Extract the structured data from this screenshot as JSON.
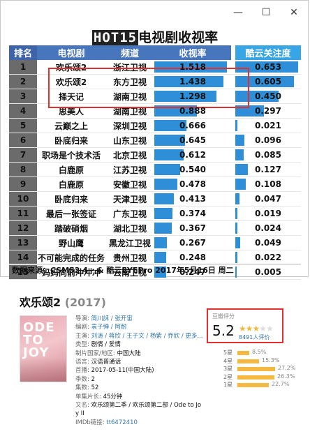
{
  "window": {
    "controls": {
      "minimize": "—",
      "maximize": "☐",
      "close": "✕"
    }
  },
  "chart": {
    "title_prefix": "HOT15",
    "title_main": "电视剧收视率",
    "headers": {
      "rank": "排名",
      "show": "电视剧",
      "channel": "频道",
      "rating": "收视率",
      "kuyun": "酷云关注度"
    },
    "rows": [
      {
        "rank": "1",
        "show": "欢乐颂2",
        "channel": "浙江卫视",
        "rating": "1.518",
        "rating_value": 1.518,
        "kuyun": "0.653",
        "kuyun_value": 0.653
      },
      {
        "rank": "2",
        "show": "欢乐颂2",
        "channel": "东方卫视",
        "rating": "1.438",
        "rating_value": 1.438,
        "kuyun": "0.605",
        "kuyun_value": 0.605
      },
      {
        "rank": "3",
        "show": "择天记",
        "channel": "湖南卫视",
        "rating": "1.298",
        "rating_value": 1.298,
        "kuyun": "0.450",
        "kuyun_value": 0.45
      },
      {
        "rank": "4",
        "show": "思美人",
        "channel": "湖南卫视",
        "rating": "0.888",
        "rating_value": 0.888,
        "kuyun": "0.297",
        "kuyun_value": 0.297
      },
      {
        "rank": "5",
        "show": "云巅之上",
        "channel": "深圳卫视",
        "rating": "0.666",
        "rating_value": 0.666,
        "kuyun": "0.021",
        "kuyun_value": 0.021
      },
      {
        "rank": "6",
        "show": "卧底归来",
        "channel": "山东卫视",
        "rating": "0.645",
        "rating_value": 0.645,
        "kuyun": "0.096",
        "kuyun_value": 0.096
      },
      {
        "rank": "7",
        "show": "职场是个技术活",
        "channel": "北京卫视",
        "rating": "0.612",
        "rating_value": 0.612,
        "kuyun": "0.085",
        "kuyun_value": 0.085
      },
      {
        "rank": "8",
        "show": "白鹿原",
        "channel": "江苏卫视",
        "rating": "0.540",
        "rating_value": 0.54,
        "kuyun": "0.127",
        "kuyun_value": 0.127
      },
      {
        "rank": "9",
        "show": "白鹿原",
        "channel": "安徽卫视",
        "rating": "0.478",
        "rating_value": 0.478,
        "kuyun": "0.108",
        "kuyun_value": 0.108
      },
      {
        "rank": "10",
        "show": "卧底归来",
        "channel": "天津卫视",
        "rating": "0.413",
        "rating_value": 0.413,
        "kuyun": "0.047",
        "kuyun_value": 0.047
      },
      {
        "rank": "11",
        "show": "最后一张签证",
        "channel": "广东卫视",
        "rating": "0.374",
        "rating_value": 0.374,
        "kuyun": "0.019",
        "kuyun_value": 0.019
      },
      {
        "rank": "12",
        "show": "踏破硝烟",
        "channel": "湖北卫视",
        "rating": "0.367",
        "rating_value": 0.367,
        "kuyun": "0.024",
        "kuyun_value": 0.024
      },
      {
        "rank": "13",
        "show": "野山鹰",
        "channel": "黑龙江卫视",
        "rating": "0.267",
        "rating_value": 0.267,
        "kuyun": "0.049",
        "kuyun_value": 0.049
      },
      {
        "rank": "14",
        "show": "不可能完成的任务",
        "channel": "贵州卫视",
        "rating": "0.248",
        "rating_value": 0.248,
        "kuyun": "0.022",
        "kuyun_value": 0.022
      },
      {
        "rank": "15",
        "show": "妈妈向前冲冲冲",
        "channel": "云南卫视",
        "rating": "0.247",
        "rating_value": 0.247,
        "kuyun": "0.005",
        "kuyun_value": 0.005
      }
    ],
    "source": "数据来源：CSM52 4+ & 酷云EYEPro 2017年5月16日 周二",
    "colors": {
      "header_blue": "#4876bc",
      "kuyun_header": "#38a6e4",
      "bar": "#2e8fd8",
      "rank_bg": "#6b6b6b",
      "highlight": "#e03030"
    }
  },
  "douban": {
    "title": "欢乐颂2",
    "year": "(2017)",
    "poster_text": "ODE TO JOY",
    "info": [
      {
        "k": "导演:",
        "v": "简川訸 / 张开宙",
        "link": true
      },
      {
        "k": "编剧:",
        "v": "袁子弹 / 阿耐",
        "link": true
      },
      {
        "k": "主演:",
        "v": "刘涛 / 蒋欣 / 王子文 / 杨紫 / 乔欣 / 更多...",
        "link": true
      },
      {
        "k": "类型:",
        "v": "剧情 / 爱情",
        "link": false
      },
      {
        "k": "制片国家/地区:",
        "v": "中国大陆",
        "link": false
      },
      {
        "k": "语言:",
        "v": "汉语普通话",
        "link": false
      },
      {
        "k": "首播:",
        "v": "2017-05-11(中国大陆)",
        "link": false
      },
      {
        "k": "季数:",
        "v": "2",
        "link": false
      },
      {
        "k": "集数:",
        "v": "52",
        "link": false
      },
      {
        "k": "单集片长:",
        "v": "45分钟",
        "link": false
      },
      {
        "k": "又名:",
        "v": "欢乐颂第二季 / 欢乐颂第二部 / Ode to Jo",
        "link": false
      },
      {
        "k": "",
        "v": "y II",
        "link": false
      },
      {
        "k": "IMDb链接:",
        "v": "tt6472410",
        "link": true
      }
    ],
    "rating": {
      "label": "豆瓣评分",
      "score": "5.2",
      "stars_filled": 2.5,
      "count": "8491人评价",
      "dist": [
        {
          "label": "5星",
          "pct": "8.5%",
          "value": 8.5
        },
        {
          "label": "4星",
          "pct": "15.3%",
          "value": 15.3
        },
        {
          "label": "3星",
          "pct": "27.2%",
          "value": 27.2
        },
        {
          "label": "2星",
          "pct": "26.3%",
          "value": 26.3
        },
        {
          "label": "1星",
          "pct": "22.7%",
          "value": 22.7
        }
      ]
    }
  }
}
